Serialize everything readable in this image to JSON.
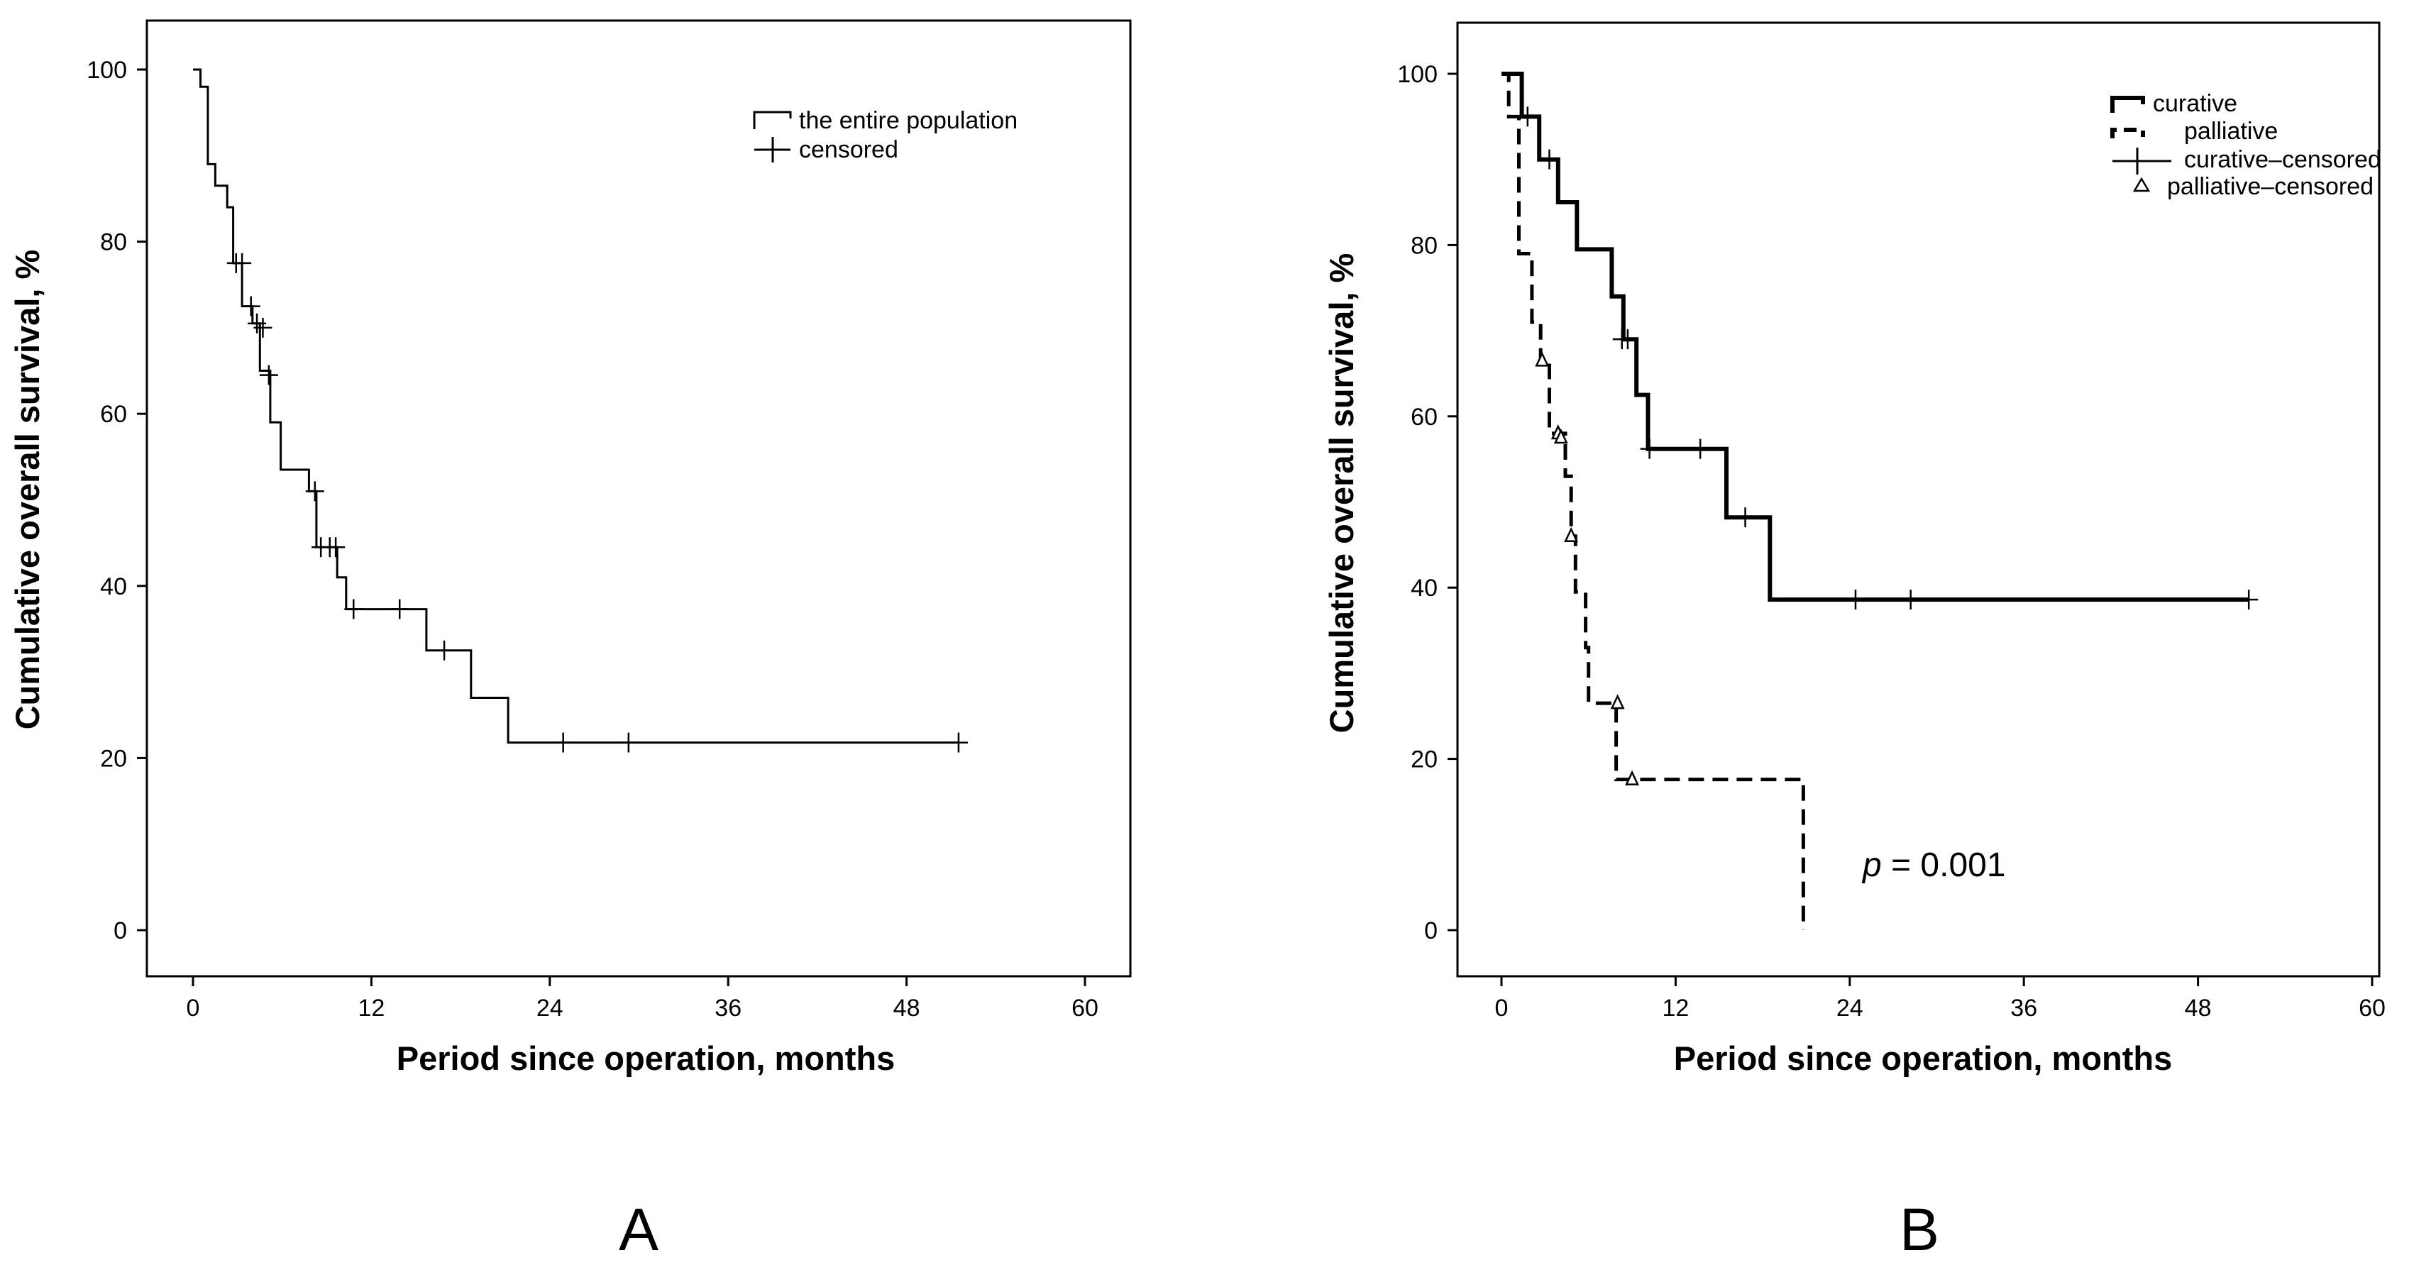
{
  "chart_data": [
    {
      "panel": "A",
      "type": "line",
      "subtype": "kaplan-meier",
      "xlabel": "Period since operation,  months",
      "ylabel": "Cumulative overall survival, %",
      "xlim": [
        0,
        60
      ],
      "ylim": [
        0,
        100
      ],
      "xticks": [
        0,
        12,
        24,
        36,
        48,
        60
      ],
      "yticks": [
        0,
        20,
        40,
        60,
        80,
        100
      ],
      "legend": {
        "position": "top-right",
        "entries": [
          {
            "label": "the entire population",
            "symbol": "step"
          },
          {
            "label": "censored",
            "symbol": "plus"
          }
        ]
      },
      "series": [
        {
          "name": "the entire population",
          "style": "thin-solid",
          "steps": [
            [
              0,
              100
            ],
            [
              0.5,
              98
            ],
            [
              1.0,
              89
            ],
            [
              1.5,
              86.5
            ],
            [
              2.3,
              84
            ],
            [
              2.7,
              77.5
            ],
            [
              3.3,
              72.5
            ],
            [
              4.0,
              70.5
            ],
            [
              4.5,
              65
            ],
            [
              5.2,
              59
            ],
            [
              5.9,
              53.5
            ],
            [
              7.8,
              51
            ],
            [
              8.3,
              44.5
            ],
            [
              9.7,
              41
            ],
            [
              10.3,
              37.3
            ],
            [
              15.7,
              32.5
            ],
            [
              18.7,
              27
            ],
            [
              21.2,
              21.8
            ],
            [
              51.5,
              21.8
            ]
          ],
          "censored": [
            [
              2.9,
              77.5
            ],
            [
              3.3,
              77.5
            ],
            [
              3.9,
              72.5
            ],
            [
              4.3,
              70.5
            ],
            [
              4.7,
              70
            ],
            [
              5.1,
              64.5
            ],
            [
              8.2,
              51
            ],
            [
              8.6,
              44.5
            ],
            [
              9.2,
              44.5
            ],
            [
              9.6,
              44.5
            ],
            [
              10.8,
              37.3
            ],
            [
              13.9,
              37.3
            ],
            [
              16.9,
              32.5
            ],
            [
              24.9,
              21.8
            ],
            [
              29.3,
              21.8
            ],
            [
              51.5,
              21.8
            ]
          ]
        }
      ]
    },
    {
      "panel": "B",
      "type": "line",
      "subtype": "kaplan-meier",
      "xlabel": "Period since operation, months",
      "ylabel": "Cumulative overall survival, %",
      "xlim": [
        0,
        60
      ],
      "ylim": [
        0,
        100
      ],
      "xticks": [
        0,
        12,
        24,
        36,
        48,
        60
      ],
      "yticks": [
        0,
        20,
        40,
        60,
        80,
        100
      ],
      "annotation": {
        "italic": "p",
        "text": " = 0.001",
        "x": 24.5,
        "y": 7
      },
      "legend": {
        "position": "top-right",
        "entries": [
          {
            "label": "curative",
            "symbol": "step-bold"
          },
          {
            "label": "palliative",
            "symbol": "step-dashed"
          },
          {
            "label": "curative–censored",
            "symbol": "plus"
          },
          {
            "label": "palliative–censored",
            "symbol": "triangle"
          }
        ]
      },
      "series": [
        {
          "name": "curative",
          "style": "bold-solid",
          "steps": [
            [
              0,
              100
            ],
            [
              1.4,
              95
            ],
            [
              2.6,
              90
            ],
            [
              3.9,
              85
            ],
            [
              5.2,
              79.5
            ],
            [
              7.6,
              74
            ],
            [
              8.4,
              69
            ],
            [
              9.3,
              62.5
            ],
            [
              10.1,
              56.2
            ],
            [
              15.5,
              48.2
            ],
            [
              18.5,
              38.6
            ],
            [
              51.5,
              38.6
            ]
          ],
          "censored": [
            [
              1.8,
              95
            ],
            [
              3.3,
              90
            ],
            [
              8.3,
              69
            ],
            [
              8.7,
              69
            ],
            [
              10.2,
              56.2
            ],
            [
              13.7,
              56.2
            ],
            [
              16.8,
              48.2
            ],
            [
              24.4,
              38.6
            ],
            [
              28.2,
              38.6
            ],
            [
              51.5,
              38.6
            ]
          ]
        },
        {
          "name": "palliative",
          "style": "dashed",
          "steps": [
            [
              0,
              100
            ],
            [
              0.5,
              95
            ],
            [
              1.2,
              79
            ],
            [
              2.1,
              71
            ],
            [
              2.7,
              66.5
            ],
            [
              3.3,
              58
            ],
            [
              4.4,
              53
            ],
            [
              4.8,
              46
            ],
            [
              5.1,
              39.5
            ],
            [
              5.8,
              33
            ],
            [
              6.0,
              26.5
            ],
            [
              7.9,
              17.6
            ],
            [
              20.8,
              17.6
            ],
            [
              20.8,
              0
            ]
          ],
          "censored": [
            [
              2.8,
              66.5
            ],
            [
              3.9,
              58
            ],
            [
              4.1,
              57.5
            ],
            [
              4.8,
              46
            ],
            [
              8.0,
              26.5
            ],
            [
              9.0,
              17.6
            ]
          ]
        }
      ]
    }
  ]
}
